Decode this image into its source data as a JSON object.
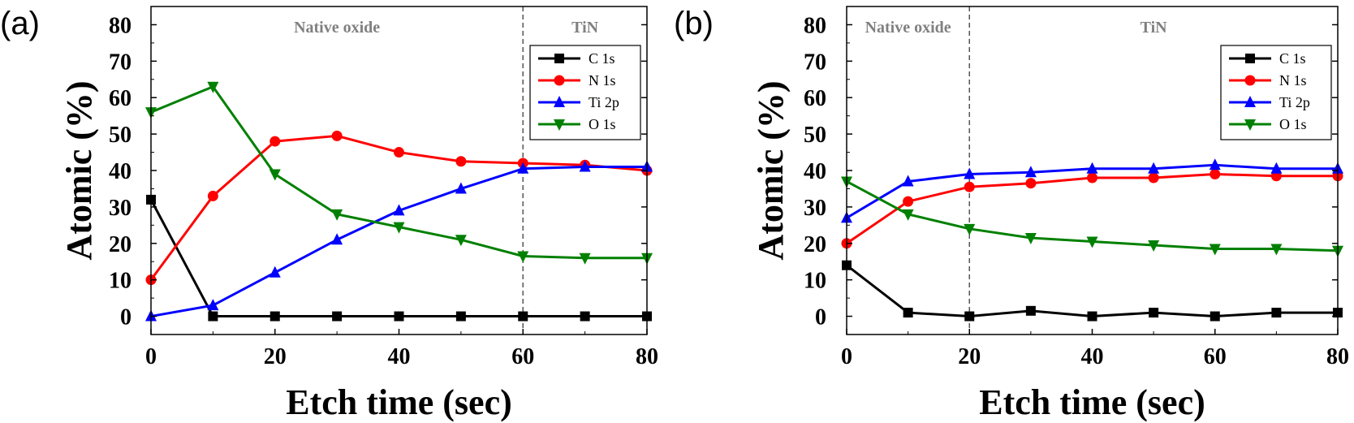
{
  "chart_data": [
    {
      "type": "line",
      "panel_label": "(a)",
      "xlabel": "Etch time (sec)",
      "ylabel": "Atomic (%)",
      "xlim": [
        0,
        80
      ],
      "ylim": [
        -5,
        85
      ],
      "xticks": [
        0,
        20,
        40,
        60,
        80
      ],
      "yticks": [
        0,
        10,
        20,
        30,
        40,
        50,
        60,
        70,
        80
      ],
      "x": [
        0,
        10,
        20,
        30,
        40,
        50,
        60,
        70,
        80
      ],
      "divider_x": 60,
      "regions": [
        "Native oxide",
        "TiN"
      ],
      "legend_position": "top-right",
      "series": [
        {
          "name": "C 1s",
          "color": "#000000",
          "marker": "square",
          "values": [
            32,
            0,
            0,
            0,
            0,
            0,
            0,
            0,
            0
          ]
        },
        {
          "name": "N 1s",
          "color": "#ff0000",
          "marker": "circle",
          "values": [
            10,
            33,
            48,
            49.5,
            45,
            42.5,
            42,
            41.5,
            40
          ]
        },
        {
          "name": "Ti 2p",
          "color": "#0000ff",
          "marker": "triangle-up",
          "values": [
            0,
            3,
            12,
            21,
            29,
            35,
            40.5,
            41,
            41
          ]
        },
        {
          "name": "O 1s",
          "color": "#008000",
          "marker": "triangle-down",
          "values": [
            56,
            63,
            39,
            28,
            24.5,
            21,
            16.5,
            16,
            16
          ]
        }
      ]
    },
    {
      "type": "line",
      "panel_label": "(b)",
      "xlabel": "Etch time (sec)",
      "ylabel": "Atomic (%)",
      "xlim": [
        0,
        80
      ],
      "ylim": [
        -5,
        85
      ],
      "xticks": [
        0,
        20,
        40,
        60,
        80
      ],
      "yticks": [
        0,
        10,
        20,
        30,
        40,
        50,
        60,
        70,
        80
      ],
      "x": [
        0,
        10,
        20,
        30,
        40,
        50,
        60,
        70,
        80
      ],
      "divider_x": 20,
      "regions": [
        "Native oxide",
        "TiN"
      ],
      "legend_position": "top-right",
      "series": [
        {
          "name": "C 1s",
          "color": "#000000",
          "marker": "square",
          "values": [
            14,
            1,
            0,
            1.5,
            0,
            1,
            0,
            1,
            1
          ]
        },
        {
          "name": "N 1s",
          "color": "#ff0000",
          "marker": "circle",
          "values": [
            20,
            31.5,
            35.5,
            36.5,
            38,
            38,
            39,
            38.5,
            38.5
          ]
        },
        {
          "name": "Ti 2p",
          "color": "#0000ff",
          "marker": "triangle-up",
          "values": [
            27,
            37,
            39,
            39.5,
            40.5,
            40.5,
            41.5,
            40.5,
            40.5
          ]
        },
        {
          "name": "O 1s",
          "color": "#008000",
          "marker": "triangle-down",
          "values": [
            37,
            28,
            24,
            21.5,
            20.5,
            19.5,
            18.5,
            18.5,
            18
          ]
        }
      ]
    }
  ]
}
